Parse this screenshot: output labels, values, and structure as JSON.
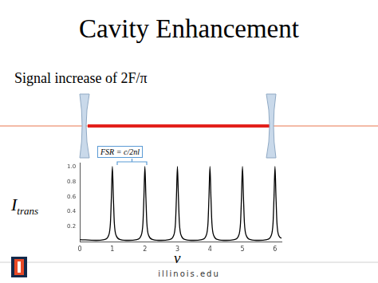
{
  "chart_data": {
    "type": "line",
    "title": "Cavity Enhancement",
    "subtitle": "Signal increase of 2F/π",
    "xlabel": "ν",
    "ylabel": "Itrans",
    "annotations": [
      "FSR = c/2nl",
      "illinois.edu"
    ],
    "color": "#000000",
    "grid": false,
    "x": [
      0,
      0.5,
      0.75,
      0.88,
      0.94,
      0.97,
      1,
      1.03,
      1.06,
      1.12,
      1.25,
      1.5,
      1.75,
      1.88,
      1.94,
      1.97,
      2,
      2.03,
      2.06,
      2.12,
      2.25,
      2.5,
      2.75,
      2.88,
      2.94,
      2.97,
      3,
      3.03,
      3.06,
      3.12,
      3.25,
      3.5,
      3.75,
      3.88,
      3.94,
      3.97,
      4,
      4.03,
      4.06,
      4.12,
      4.25,
      4.5,
      4.75,
      4.88,
      4.94,
      4.97,
      5,
      5.03,
      5.06,
      5.12,
      5.25,
      5.5,
      5.75,
      5.88,
      5.94,
      5.97,
      6,
      6.03,
      6.06,
      6.12,
      6.2
    ],
    "values": [
      0.03,
      0.02,
      0.03,
      0.08,
      0.25,
      0.6,
      1.0,
      0.6,
      0.25,
      0.08,
      0.03,
      0.02,
      0.03,
      0.08,
      0.25,
      0.6,
      1.0,
      0.6,
      0.25,
      0.08,
      0.03,
      0.02,
      0.03,
      0.08,
      0.25,
      0.6,
      1.0,
      0.6,
      0.25,
      0.08,
      0.03,
      0.02,
      0.03,
      0.08,
      0.25,
      0.6,
      1.0,
      0.6,
      0.25,
      0.08,
      0.03,
      0.02,
      0.03,
      0.08,
      0.25,
      0.6,
      1.0,
      0.6,
      0.25,
      0.08,
      0.03,
      0.02,
      0.03,
      0.08,
      0.25,
      0.6,
      1.0,
      0.6,
      0.25,
      0.08,
      0.05
    ],
    "xlim": [
      0,
      6.2
    ],
    "xticks": [
      0,
      1,
      2,
      3,
      4,
      5,
      6
    ],
    "ylim": [
      0,
      1.05
    ],
    "yticks": [
      0.2,
      0.4,
      0.6,
      0.8,
      {
        "value": 1,
        "label": "1.0"
      }
    ]
  }
}
